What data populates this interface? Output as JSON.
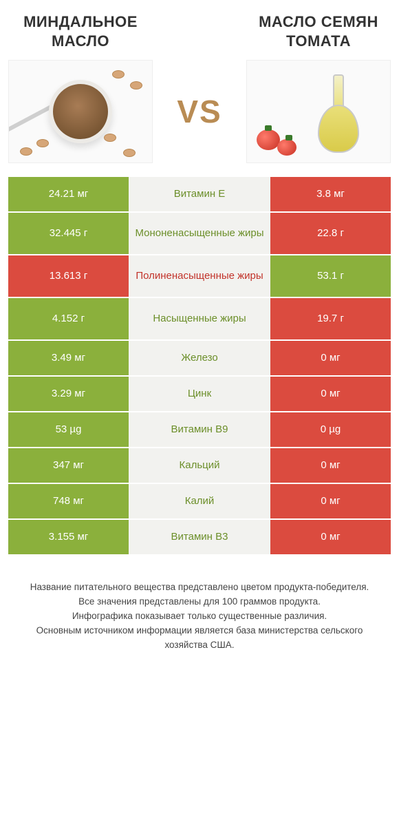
{
  "colors": {
    "green": "#8bb03c",
    "red": "#db4b3f",
    "mid_bg": "#f2f2ef",
    "txt_green": "#6c8f2a",
    "txt_red": "#c2332a",
    "vs": "#b98c54"
  },
  "header": {
    "left_title": "МИНДАЛЬНОЕ МАСЛО",
    "right_title": "МАСЛО СЕМЯН ТОМАТА",
    "vs_label": "VS"
  },
  "rows": [
    {
      "left": "24.21 мг",
      "label": "Витамин E",
      "right": "3.8 мг",
      "winner": "left",
      "tall": false
    },
    {
      "left": "32.445 г",
      "label": "Мононенасыщенные жиры",
      "right": "22.8 г",
      "winner": "left",
      "tall": true
    },
    {
      "left": "13.613 г",
      "label": "Полиненасыщенные жиры",
      "right": "53.1 г",
      "winner": "right",
      "tall": true
    },
    {
      "left": "4.152 г",
      "label": "Насыщенные жиры",
      "right": "19.7 г",
      "winner": "left",
      "tall": true
    },
    {
      "left": "3.49 мг",
      "label": "Железо",
      "right": "0 мг",
      "winner": "left",
      "tall": false
    },
    {
      "left": "3.29 мг",
      "label": "Цинк",
      "right": "0 мг",
      "winner": "left",
      "tall": false
    },
    {
      "left": "53 µg",
      "label": "Витамин B9",
      "right": "0 µg",
      "winner": "left",
      "tall": false
    },
    {
      "left": "347 мг",
      "label": "Кальций",
      "right": "0 мг",
      "winner": "left",
      "tall": false
    },
    {
      "left": "748 мг",
      "label": "Калий",
      "right": "0 мг",
      "winner": "left",
      "tall": false
    },
    {
      "left": "3.155 мг",
      "label": "Витамин B3",
      "right": "0 мг",
      "winner": "left",
      "tall": false
    }
  ],
  "footnote": {
    "l1": "Название питательного вещества представлено цветом продукта-победителя.",
    "l2": "Все значения представлены для 100 граммов продукта.",
    "l3": "Инфографика показывает только существенные различия.",
    "l4": "Основным источником информации является база министерства сельского хозяйства США."
  }
}
